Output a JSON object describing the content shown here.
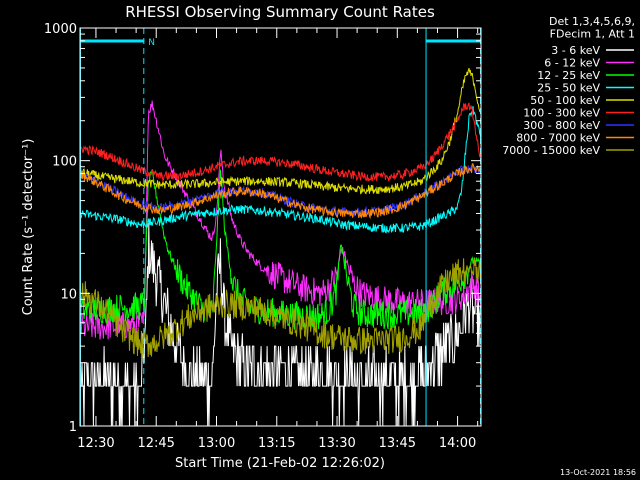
{
  "chart_data": {
    "type": "line",
    "title": "RHESSI Observing Summary Count Rates",
    "xlabel": "Start Time (21-Feb-02 12:26:02)",
    "ylabel": "Count Rate (s⁻¹ detector⁻¹)",
    "yscale": "log",
    "ylim": [
      1,
      1000
    ],
    "xlim_minutes_after_start": [
      0,
      99.8
    ],
    "x_ticks": [
      "12:30",
      "12:45",
      "13:00",
      "13:15",
      "13:30",
      "13:45",
      "14:00"
    ],
    "x_ticks_minutes_after_start": [
      3.97,
      18.97,
      33.97,
      48.97,
      63.97,
      78.97,
      93.97
    ],
    "y_ticks": [
      "1",
      "10",
      "100",
      "1000"
    ],
    "y_tick_values": [
      1,
      10,
      100,
      1000
    ],
    "legend": {
      "placement": "right-top",
      "header_lines": [
        "Det 1,3,4,5,6,9,",
        "FDecim 1, Att 1"
      ]
    },
    "timestamp": "13-Oct-2021 18:56",
    "annotations": [
      {
        "text": "N",
        "color": "#00e5ff",
        "x_minute": 16.0
      }
    ],
    "spacecraft_night": [
      {
        "start_min": 0,
        "end_min": 16.0
      },
      {
        "start_min": 86.0,
        "end_min": 99.8
      }
    ],
    "dashed_markers_min": [
      16.0,
      99.8
    ],
    "solid_markers_min": [
      0.0,
      86.0
    ],
    "series": [
      {
        "name": "3 - 6 keV",
        "color": "#ffffff",
        "x": [
          0,
          5,
          10,
          15,
          16.5,
          17,
          17.5,
          18,
          19,
          20,
          21,
          22,
          23,
          24,
          25,
          27,
          29,
          31,
          33,
          34,
          35,
          36,
          38,
          40,
          42,
          45,
          50,
          55,
          60,
          65,
          70,
          75,
          80,
          85,
          86,
          88,
          90,
          92,
          94,
          95,
          96,
          97,
          98,
          99,
          99.8
        ],
        "y": [
          2,
          2.3,
          2.1,
          1.8,
          6,
          22,
          20,
          17,
          14,
          11,
          8.5,
          6.5,
          5,
          4,
          3.3,
          2.6,
          2.3,
          2,
          2.5,
          10,
          18,
          6,
          3.5,
          3,
          2.8,
          2.6,
          2.6,
          2.5,
          2.5,
          2.4,
          2.3,
          2.2,
          2.2,
          2.4,
          2.6,
          3.2,
          3.6,
          4.2,
          5,
          6,
          7.5,
          8,
          7,
          6,
          5.5
        ]
      },
      {
        "name": "6 - 12 keV",
        "color": "#ff2fff",
        "x": [
          0,
          5,
          10,
          15,
          16,
          17,
          18,
          19,
          20,
          21,
          22,
          24,
          26,
          28,
          30,
          32,
          33,
          34,
          35,
          36,
          38,
          40,
          42,
          45,
          50,
          55,
          60,
          62,
          64,
          65,
          66,
          68,
          70,
          75,
          80,
          85,
          86,
          88,
          90,
          92,
          94,
          95,
          96,
          97,
          98,
          99,
          99.8
        ],
        "y": [
          5.5,
          5.6,
          5.7,
          5.8,
          6,
          230,
          270,
          200,
          150,
          110,
          95,
          75,
          58,
          45,
          36,
          28,
          26,
          40,
          120,
          60,
          35,
          25,
          20,
          16,
          13,
          11,
          10,
          11,
          14,
          22,
          19,
          12,
          10,
          9,
          8.5,
          8.5,
          8.5,
          8.6,
          8.7,
          8.8,
          9,
          9.5,
          10,
          11,
          12,
          10,
          9
        ]
      },
      {
        "name": "12 - 25 keV",
        "color": "#00ff00",
        "x": [
          0,
          5,
          10,
          15,
          16,
          17,
          18,
          19,
          20,
          21,
          22,
          24,
          26,
          28,
          30,
          32,
          33,
          34,
          35,
          36,
          38,
          40,
          42,
          45,
          50,
          55,
          60,
          62,
          64,
          65,
          66,
          68,
          70,
          75,
          80,
          85,
          86,
          88,
          90,
          92,
          94,
          95,
          96,
          97,
          98,
          99,
          99.8
        ],
        "y": [
          7.5,
          7.6,
          7.8,
          8,
          8.5,
          70,
          80,
          55,
          38,
          27,
          21,
          15,
          11.5,
          9.5,
          8,
          7.2,
          7,
          25,
          90,
          30,
          12,
          9,
          8,
          7.5,
          7,
          6.8,
          6.8,
          7.5,
          11,
          25,
          15,
          8,
          7,
          6.9,
          7,
          7.2,
          7.3,
          8.5,
          10,
          11,
          12,
          13,
          14,
          16,
          18,
          17,
          16
        ]
      },
      {
        "name": "25 - 50 keV",
        "color": "#00ffff",
        "x": [
          0,
          5,
          10,
          15,
          20,
          25,
          30,
          35,
          40,
          45,
          50,
          55,
          60,
          65,
          70,
          75,
          80,
          85,
          86,
          88,
          90,
          92,
          94,
          95,
          96,
          97,
          98,
          99,
          99.8
        ],
        "y": [
          40,
          38,
          36,
          33,
          35,
          38,
          40,
          42,
          43,
          42,
          40,
          38,
          36,
          33,
          32,
          31,
          31,
          32,
          33,
          35,
          38,
          40,
          45,
          60,
          120,
          230,
          240,
          180,
          150
        ]
      },
      {
        "name": "50 - 100 keV",
        "color": "#dddd00",
        "x": [
          0,
          5,
          10,
          15,
          20,
          25,
          30,
          35,
          40,
          45,
          50,
          55,
          60,
          65,
          70,
          75,
          80,
          85,
          86,
          88,
          90,
          92,
          94,
          95,
          96,
          97,
          98,
          99,
          99.8
        ],
        "y": [
          82,
          76,
          72,
          68,
          66,
          66,
          67,
          69,
          70,
          70,
          69,
          67,
          64,
          62,
          61,
          61,
          63,
          70,
          75,
          85,
          100,
          140,
          230,
          330,
          440,
          470,
          400,
          280,
          220
        ]
      },
      {
        "name": "100 - 300 keV",
        "color": "#ff2020",
        "x": [
          0,
          5,
          10,
          15,
          20,
          25,
          30,
          35,
          40,
          45,
          50,
          55,
          60,
          65,
          70,
          75,
          80,
          85,
          88,
          90,
          92,
          94,
          95,
          96,
          97,
          98,
          99,
          99.8
        ],
        "y": [
          125,
          115,
          100,
          85,
          76,
          77,
          83,
          92,
          99,
          100,
          97,
          92,
          85,
          80,
          76,
          75,
          78,
          88,
          105,
          130,
          160,
          200,
          240,
          260,
          260,
          210,
          130,
          100
        ]
      },
      {
        "name": "300 - 800 keV",
        "color": "#3030ff",
        "x": [
          0,
          5,
          10,
          15,
          20,
          25,
          30,
          35,
          40,
          45,
          50,
          55,
          60,
          65,
          70,
          75,
          80,
          85,
          88,
          90,
          92,
          94,
          96,
          98,
          99.8
        ],
        "y": [
          78,
          68,
          56,
          47,
          44,
          47,
          52,
          58,
          60,
          58,
          52,
          46,
          43,
          41,
          41,
          42,
          46,
          55,
          63,
          68,
          75,
          82,
          87,
          86,
          84
        ]
      },
      {
        "name": "800 - 7000 keV",
        "color": "#ff8a00",
        "x": [
          0,
          5,
          10,
          15,
          20,
          25,
          30,
          35,
          40,
          45,
          50,
          55,
          60,
          65,
          70,
          75,
          80,
          85,
          88,
          90,
          92,
          94,
          96,
          98,
          99.8
        ],
        "y": [
          80,
          66,
          54,
          46,
          42,
          45,
          50,
          56,
          59,
          57,
          51,
          45,
          42,
          40,
          40,
          41,
          45,
          54,
          62,
          67,
          74,
          80,
          86,
          88,
          86
        ]
      },
      {
        "name": "7000 - 15000 keV",
        "color": "#a0a000",
        "x": [
          0,
          2,
          4,
          6,
          8,
          10,
          12,
          14,
          16,
          18,
          20,
          22,
          24,
          26,
          28,
          30,
          33,
          36,
          40,
          45,
          50,
          55,
          60,
          65,
          70,
          75,
          80,
          85,
          86,
          88,
          90,
          92,
          94,
          96,
          98,
          99.8
        ],
        "y": [
          10,
          9.5,
          8.5,
          7.5,
          6.5,
          5.5,
          4.8,
          4.3,
          4.1,
          4.2,
          4.5,
          5,
          5.5,
          6.2,
          6.8,
          7.4,
          8,
          8.3,
          8.1,
          7.5,
          6.6,
          5.8,
          5,
          4.6,
          4.4,
          4.4,
          4.6,
          5.5,
          7,
          9,
          11,
          13,
          14,
          15,
          15,
          14
        ]
      }
    ]
  }
}
